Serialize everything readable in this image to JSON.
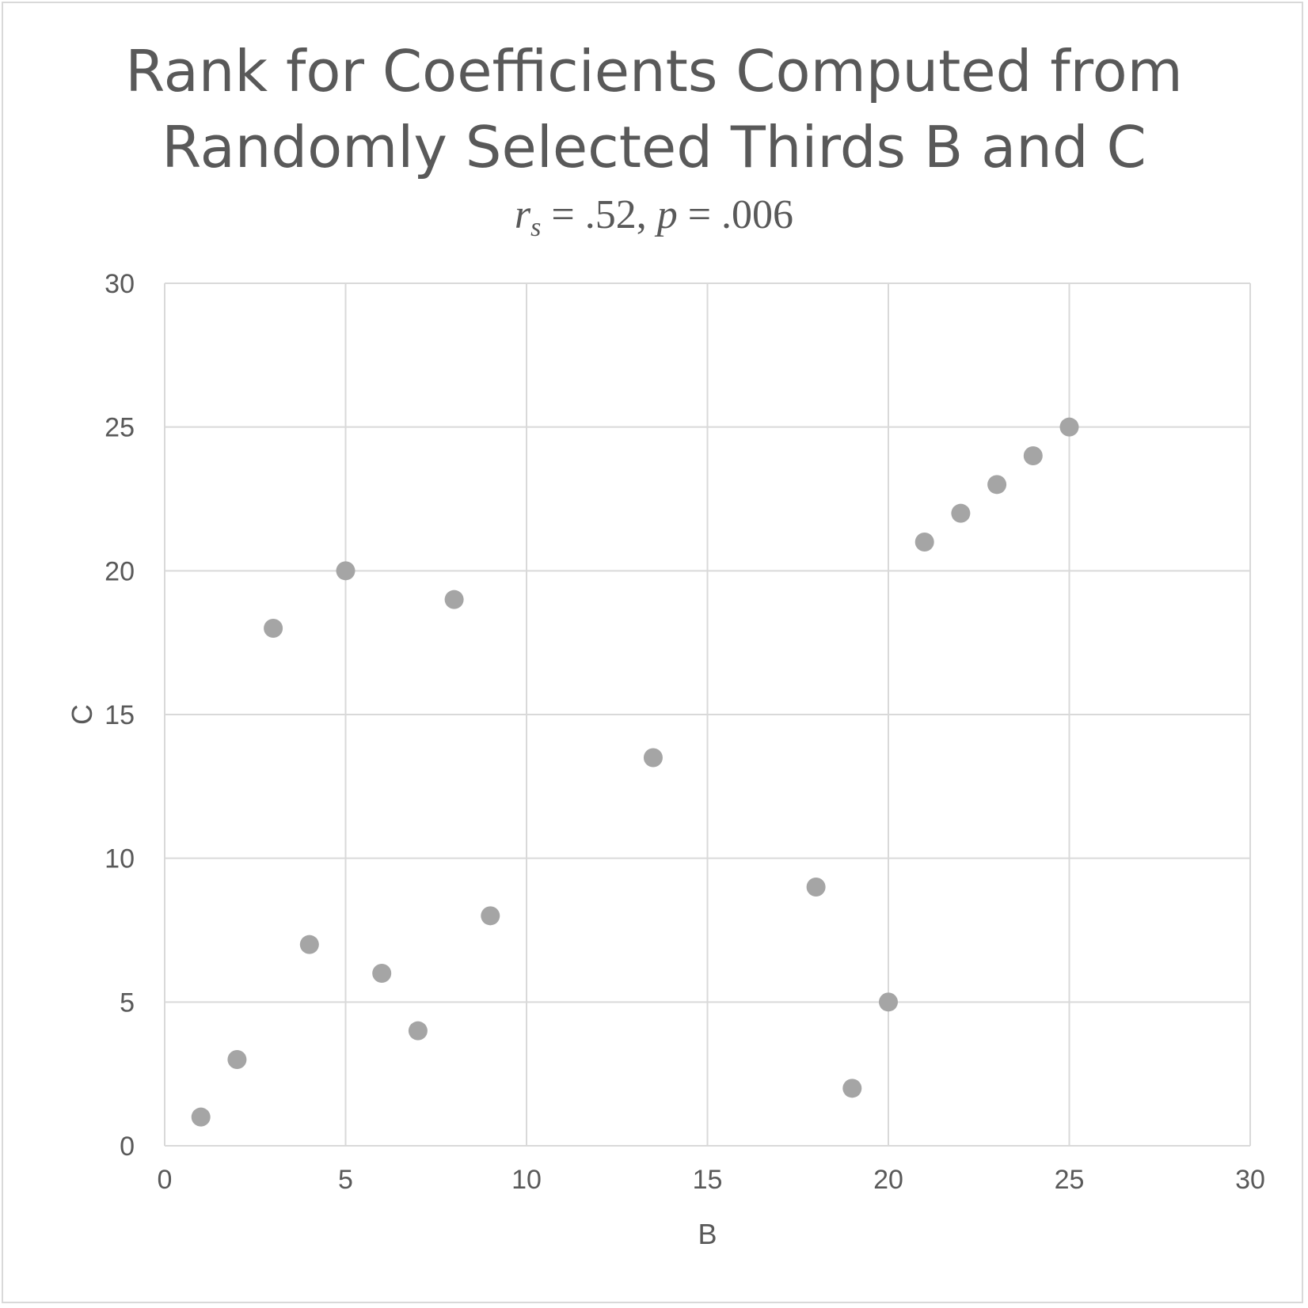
{
  "chart_data": {
    "type": "scatter",
    "title_lines": [
      "Rank for Coefficients Computed from",
      "Randomly Selected Thirds B and C"
    ],
    "subtitle": {
      "r_symbol": "r",
      "r_subscript": "s",
      "r_value": " = .52, ",
      "p_symbol": "p",
      "p_value": " = .006"
    },
    "xlabel": "B",
    "ylabel": "C",
    "xlim": [
      0,
      30
    ],
    "ylim": [
      0,
      30
    ],
    "xticks": [
      0,
      5,
      10,
      15,
      20,
      25,
      30
    ],
    "yticks": [
      0,
      5,
      10,
      15,
      20,
      25,
      30
    ],
    "grid": true,
    "marker_color": "#a5a5a5",
    "grid_color": "#d9d9d9",
    "text_color": "#595959",
    "points": [
      {
        "x": 1,
        "y": 1
      },
      {
        "x": 2,
        "y": 3
      },
      {
        "x": 3,
        "y": 18
      },
      {
        "x": 4,
        "y": 7
      },
      {
        "x": 5,
        "y": 20
      },
      {
        "x": 6,
        "y": 6
      },
      {
        "x": 7,
        "y": 4
      },
      {
        "x": 8,
        "y": 19
      },
      {
        "x": 9,
        "y": 8
      },
      {
        "x": 13.5,
        "y": 13.5
      },
      {
        "x": 18,
        "y": 9
      },
      {
        "x": 19,
        "y": 2
      },
      {
        "x": 20,
        "y": 5
      },
      {
        "x": 21,
        "y": 21
      },
      {
        "x": 22,
        "y": 22
      },
      {
        "x": 23,
        "y": 23
      },
      {
        "x": 24,
        "y": 24
      },
      {
        "x": 25,
        "y": 25
      }
    ]
  }
}
